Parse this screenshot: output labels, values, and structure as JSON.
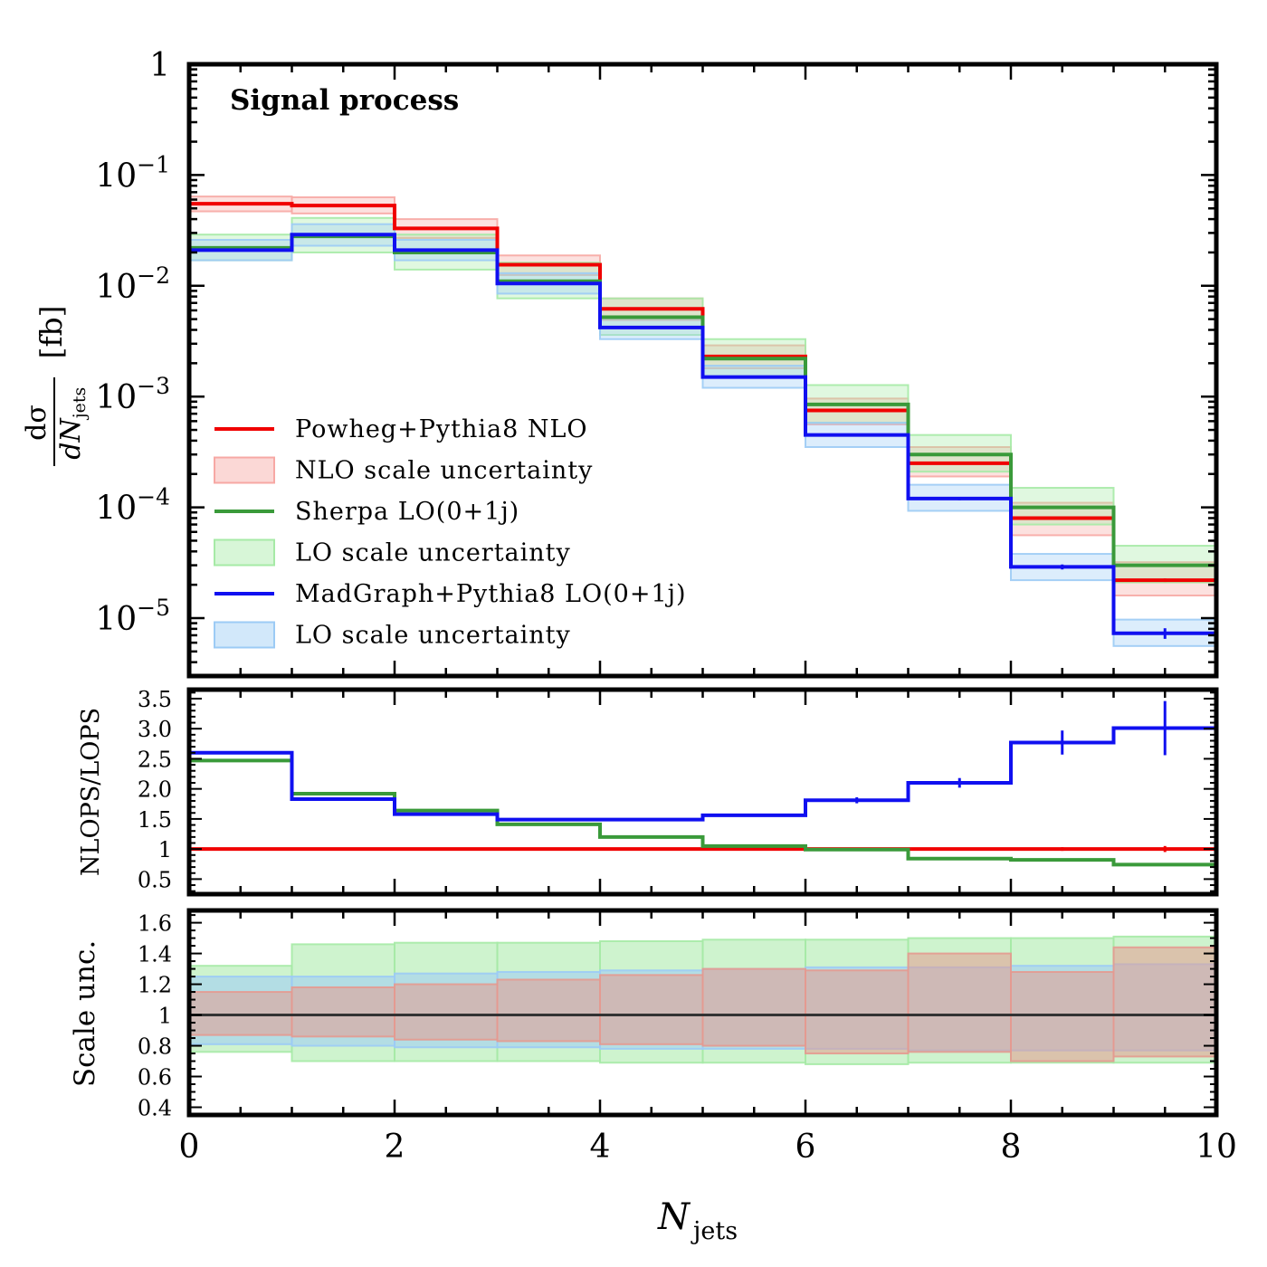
{
  "chart_data": [
    {
      "panel": "main",
      "type": "line",
      "title": "Signal process",
      "xlabel": "N",
      "xlabel_sub": "jets",
      "ylabel_num": "dσ",
      "ylabel_den": "dN",
      "ylabel_den_sub": "jets",
      "ylabel_unit": "[fb]",
      "yscale": "log",
      "ylim": [
        3e-06,
        1
      ],
      "xlim": [
        0,
        10
      ],
      "y_ticks": [
        {
          "value": 1,
          "base": "1",
          "exp": ""
        },
        {
          "value": 0.1,
          "base": "10",
          "exp": "−1"
        },
        {
          "value": 0.01,
          "base": "10",
          "exp": "−2"
        },
        {
          "value": 0.001,
          "base": "10",
          "exp": "−3"
        },
        {
          "value": 0.0001,
          "base": "10",
          "exp": "−4"
        },
        {
          "value": 1e-05,
          "base": "10",
          "exp": "−5"
        }
      ],
      "bin_edges": [
        0,
        1,
        2,
        3,
        4,
        5,
        6,
        7,
        8,
        9,
        10
      ],
      "series": [
        {
          "name": "Powheg+Pythia8 NLO",
          "color": "#f00000",
          "values": [
            0.055,
            0.053,
            0.033,
            0.0155,
            0.0062,
            0.0023,
            0.00075,
            0.00025,
            8e-05,
            2.2e-05
          ],
          "errors": [
            0,
            0,
            0,
            0,
            0,
            0,
            1e-05,
            5e-06,
            2e-06,
            8e-07
          ]
        },
        {
          "name": "Sherpa LO(0+1j)",
          "color": "#3a9a3a",
          "values": [
            0.022,
            0.028,
            0.02,
            0.011,
            0.0052,
            0.0022,
            0.00085,
            0.0003,
            0.0001,
            3e-05
          ],
          "errors": [
            0,
            0,
            0,
            0,
            0,
            0,
            0,
            0,
            0,
            0
          ]
        },
        {
          "name": "MadGraph+Pythia8 LO(0+1j)",
          "color": "#1010f0",
          "values": [
            0.021,
            0.029,
            0.021,
            0.0105,
            0.0042,
            0.0015,
            0.00045,
            0.00012,
            2.9e-05,
            7.3e-06
          ],
          "errors": [
            0,
            0,
            0,
            0,
            0,
            0,
            1e-05,
            4e-06,
            1.5e-06,
            8e-07
          ]
        }
      ],
      "bands": [
        {
          "name": "NLO scale uncertainty",
          "color": "#f7a8a4",
          "of": 0,
          "lo": [
            0.047,
            0.045,
            0.027,
            0.0125,
            0.0049,
            0.0018,
            0.00056,
            0.00019,
            5.6e-05,
            1.6e-05
          ],
          "hi": [
            0.064,
            0.063,
            0.04,
            0.0188,
            0.0077,
            0.0029,
            0.00096,
            0.00035,
            0.00011,
            3.2e-05
          ]
        },
        {
          "name": "LO scale uncertainty",
          "color": "#a6eaa6",
          "of": 1,
          "lo": [
            0.017,
            0.02,
            0.014,
            0.0077,
            0.0036,
            0.0015,
            0.00058,
            0.00021,
            7e-05,
            2.1e-05
          ],
          "hi": [
            0.029,
            0.041,
            0.029,
            0.0162,
            0.0077,
            0.0033,
            0.00127,
            0.00045,
            0.00015,
            4.5e-05
          ]
        },
        {
          "name": "LO scale uncertainty",
          "color": "#9ccbf5",
          "of": 2,
          "lo": [
            0.017,
            0.023,
            0.017,
            0.0085,
            0.0033,
            0.0012,
            0.00035,
            9.3e-05,
            2.2e-05,
            5.6e-06
          ],
          "hi": [
            0.026,
            0.036,
            0.026,
            0.013,
            0.0053,
            0.0019,
            0.00058,
            0.00016,
            3.8e-05,
            9.7e-06
          ]
        }
      ],
      "legend": {
        "placement": "lower-left",
        "entries": [
          {
            "label": "Powheg+Pythia8 NLO",
            "kind": "line",
            "color": "#f00000"
          },
          {
            "label": "NLO scale uncertainty",
            "kind": "patch",
            "color": "#f7a8a4"
          },
          {
            "label": "Sherpa LO(0+1j)",
            "kind": "line",
            "color": "#3a9a3a"
          },
          {
            "label": "LO scale uncertainty",
            "kind": "patch",
            "color": "#a6eaa6"
          },
          {
            "label": "MadGraph+Pythia8 LO(0+1j)",
            "kind": "line",
            "color": "#1010f0"
          },
          {
            "label": "LO scale uncertainty",
            "kind": "patch",
            "color": "#9ccbf5"
          }
        ]
      }
    },
    {
      "panel": "ratio",
      "type": "line",
      "ylabel": "NLOPS/LOPS",
      "ylim": [
        0.25,
        3.65
      ],
      "xlim": [
        0,
        10
      ],
      "y_ticks": [
        "3.5",
        "3.0",
        "2.5",
        "2.0",
        "1.5",
        "1",
        "0.5"
      ],
      "y_tick_values": [
        3.5,
        3.0,
        2.5,
        2.0,
        1.5,
        1.0,
        0.5
      ],
      "bin_edges": [
        0,
        1,
        2,
        3,
        4,
        5,
        6,
        7,
        8,
        9,
        10
      ],
      "series": [
        {
          "name": "Powheg+Pythia8 NLO",
          "color": "#f00000",
          "values": [
            1,
            1,
            1,
            1,
            1,
            1,
            1,
            1,
            1,
            1
          ],
          "errors": [
            0,
            0,
            0,
            0,
            0,
            0,
            0.01,
            0.01,
            0.03,
            0.05
          ]
        },
        {
          "name": "Sherpa LO(0+1j)",
          "color": "#3a9a3a",
          "values": [
            2.47,
            1.92,
            1.64,
            1.41,
            1.2,
            1.05,
            0.99,
            0.84,
            0.82,
            0.74
          ],
          "errors": [
            0,
            0,
            0,
            0,
            0,
            0,
            0,
            0,
            0,
            0
          ]
        },
        {
          "name": "MadGraph+Pythia8 LO(0+1j)",
          "color": "#1010f0",
          "values": [
            2.6,
            1.83,
            1.58,
            1.49,
            1.49,
            1.56,
            1.81,
            2.1,
            2.77,
            3.01
          ],
          "errors": [
            0,
            0,
            0,
            0,
            0,
            0,
            0.05,
            0.08,
            0.2,
            0.45
          ]
        }
      ]
    },
    {
      "panel": "scale",
      "type": "area",
      "ylabel": "Scale unc.",
      "ylim": [
        0.35,
        1.68
      ],
      "xlim": [
        0,
        10
      ],
      "y_ticks": [
        "1.6",
        "1.4",
        "1.2",
        "1",
        "0.8",
        "0.6",
        "0.4"
      ],
      "y_tick_values": [
        1.6,
        1.4,
        1.2,
        1.0,
        0.8,
        0.6,
        0.4
      ],
      "x_ticks": [
        "0",
        "2",
        "4",
        "6",
        "8",
        "10"
      ],
      "x_tick_values": [
        0,
        2,
        4,
        6,
        8,
        10
      ],
      "bin_edges": [
        0,
        1,
        2,
        3,
        4,
        5,
        6,
        7,
        8,
        9,
        10
      ],
      "reference": 1,
      "bands": [
        {
          "name": "Sherpa LO scale uncertainty",
          "color": "#a6eaa6",
          "lo": [
            0.76,
            0.7,
            0.7,
            0.7,
            0.69,
            0.69,
            0.68,
            0.69,
            0.69,
            0.69
          ],
          "hi": [
            1.32,
            1.46,
            1.47,
            1.47,
            1.48,
            1.49,
            1.49,
            1.5,
            1.5,
            1.51
          ]
        },
        {
          "name": "MadGraph LO scale uncertainty",
          "color": "#9ccbf5",
          "lo": [
            0.81,
            0.8,
            0.79,
            0.79,
            0.78,
            0.78,
            0.78,
            0.77,
            0.77,
            0.77
          ],
          "hi": [
            1.25,
            1.25,
            1.27,
            1.28,
            1.29,
            1.3,
            1.31,
            1.31,
            1.32,
            1.33
          ]
        },
        {
          "name": "NLO scale uncertainty",
          "color": "#e49a90",
          "lo": [
            0.87,
            0.86,
            0.84,
            0.83,
            0.81,
            0.8,
            0.75,
            0.76,
            0.7,
            0.73
          ],
          "hi": [
            1.15,
            1.18,
            1.2,
            1.23,
            1.26,
            1.3,
            1.29,
            1.4,
            1.28,
            1.44
          ]
        }
      ]
    }
  ]
}
